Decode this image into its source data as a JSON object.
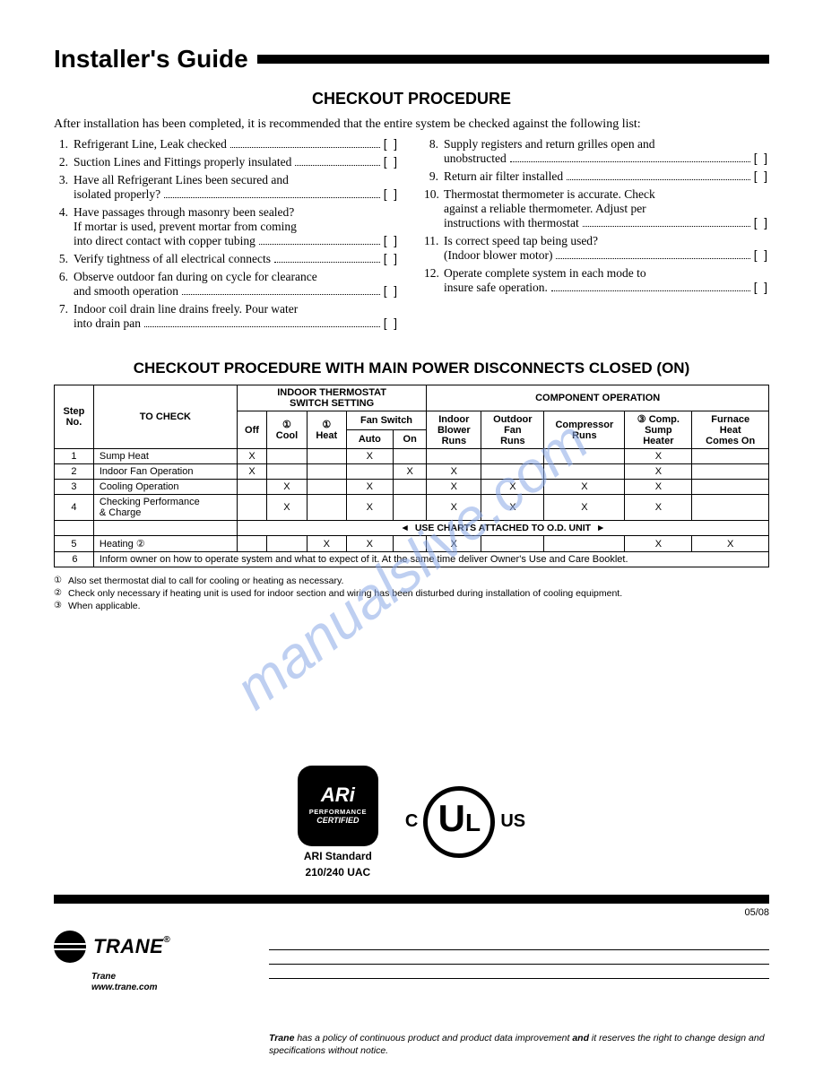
{
  "header": {
    "title": "Installer's Guide"
  },
  "section1": {
    "title": "CHECKOUT PROCEDURE",
    "intro": "After installation has been completed, it is recommended that the entire system be checked against the following list:"
  },
  "checklist": {
    "left": [
      {
        "n": "1.",
        "lines": [
          "Refrigerant Line, Leak checked"
        ]
      },
      {
        "n": "2.",
        "lines": [
          "Suction Lines and Fittings properly insulated"
        ]
      },
      {
        "n": "3.",
        "lines": [
          "Have all Refrigerant Lines been secured and",
          "isolated properly?"
        ]
      },
      {
        "n": "4.",
        "lines": [
          "Have passages through masonry been sealed?",
          "If mortar is used, prevent mortar from coming",
          "into direct contact with copper tubing"
        ]
      },
      {
        "n": "5.",
        "lines": [
          "Verify tightness of all electrical connects"
        ]
      },
      {
        "n": "6.",
        "lines": [
          "Observe outdoor fan during on cycle for clearance",
          "and smooth operation"
        ]
      },
      {
        "n": "7.",
        "lines": [
          "Indoor coil drain line drains freely. Pour water",
          "into drain pan"
        ]
      }
    ],
    "right": [
      {
        "n": "8.",
        "lines": [
          "Supply registers and return grilles open and",
          "unobstructed"
        ]
      },
      {
        "n": "9.",
        "lines": [
          "Return air filter installed"
        ]
      },
      {
        "n": "10.",
        "lines": [
          "Thermostat thermometer is accurate. Check",
          "against a reliable thermometer. Adjust per",
          "instructions with thermostat"
        ]
      },
      {
        "n": "11.",
        "lines": [
          "Is correct speed tap being used?",
          "(Indoor blower motor)"
        ]
      },
      {
        "n": "12.",
        "lines": [
          "Operate complete system in each mode to",
          "insure safe operation."
        ]
      }
    ],
    "box": "[    ]"
  },
  "section2": {
    "title": "CHECKOUT PROCEDURE WITH MAIN POWER DISCONNECTS CLOSED (ON)"
  },
  "table": {
    "hd": {
      "step": "Step\nNo.",
      "tocheck": "TO CHECK",
      "indoor_therm": "INDOOR THERMOSTAT\nSWITCH SETTING",
      "component": "COMPONENT OPERATION",
      "off": "Off",
      "cool": "①\nCool",
      "heat": "①\nHeat",
      "fansw": "Fan Switch",
      "auto": "Auto",
      "on": "On",
      "iblower": "Indoor\nBlower\nRuns",
      "ofan": "Outdoor\nFan\nRuns",
      "comp": "Compressor\nRuns",
      "sump": "③ Comp.\nSump\nHeater",
      "furnace": "Furnace\nHeat\nComes On"
    },
    "rows": [
      {
        "n": "1",
        "label": "Sump Heat",
        "c": [
          "X",
          "",
          "",
          "X",
          "",
          "",
          "",
          "",
          "X",
          ""
        ]
      },
      {
        "n": "2",
        "label": "Indoor Fan Operation",
        "c": [
          "X",
          "",
          "",
          "",
          "X",
          "X",
          "",
          "",
          "X",
          ""
        ]
      },
      {
        "n": "3",
        "label": "Cooling Operation",
        "c": [
          "",
          "X",
          "",
          "X",
          "",
          "X",
          "X",
          "X",
          "X",
          ""
        ]
      },
      {
        "n": "4",
        "label": "Checking Performance\n& Charge",
        "c": [
          "",
          "X",
          "",
          "X",
          "",
          "X",
          "X",
          "X",
          "X",
          ""
        ],
        "charts": true
      },
      {
        "n": "5",
        "label": "Heating ②",
        "c": [
          "",
          "",
          "X",
          "X",
          "",
          "X",
          "",
          "",
          "X",
          "X"
        ]
      }
    ],
    "charts_note": "USE CHARTS ATTACHED TO O.D. UNIT",
    "inform": {
      "n": "6",
      "text": "Inform owner on how to operate system and what to expect of it. At the same time deliver Owner's Use and Care Booklet."
    }
  },
  "footnotes": [
    {
      "sym": "①",
      "text": "Also set thermostat dial to call for cooling or heating as necessary."
    },
    {
      "sym": "②",
      "text": "Check only necessary if heating unit is used for indoor section and wiring has been disturbed during installation of cooling equipment."
    },
    {
      "sym": "③",
      "text": "When applicable."
    }
  ],
  "watermark": "manualslive.com",
  "ari": {
    "top": "ARi",
    "mid": "PERFORMANCE",
    "bot": "CERTIFIED",
    "sub1": "ARI Standard",
    "sub2": "210/240 UAC"
  },
  "ul": {
    "left": "C",
    "u": "U",
    "l": "L",
    "right": "US"
  },
  "date": "05/08",
  "trane": {
    "name": "TRANE",
    "sub1": "Trane",
    "sub2": "www.trane.com"
  },
  "disclaimer": {
    "b1": "Trane",
    "mid": " has a policy of continuous product and product data improvement ",
    "b2": "and",
    "end": " it reserves the right to change design and specifications without notice."
  }
}
